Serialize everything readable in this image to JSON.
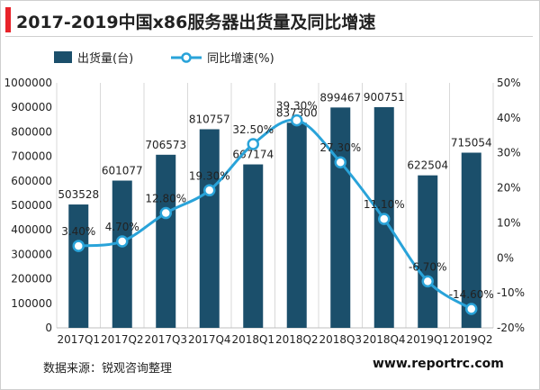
{
  "header": {
    "title": "2017-2019中国x86服务器出货量及同比增速"
  },
  "colors": {
    "bar": "#1b4f6b",
    "line": "#29a3d9",
    "accent": "#e8232a"
  },
  "footer": {
    "source": "数据来源：锐观咨询整理",
    "site": "www.reportrc.com"
  },
  "chart_data": {
    "type": "bar",
    "categories": [
      "2017Q1",
      "2017Q2",
      "2017Q3",
      "2017Q4",
      "2018Q1",
      "2018Q2",
      "2018Q3",
      "2018Q4",
      "2019Q1",
      "2019Q2"
    ],
    "series": [
      {
        "name": "出货量(台)",
        "type": "bar",
        "axis": "left",
        "values": [
          503528,
          601077,
          706573,
          810757,
          667174,
          837300,
          899467,
          900751,
          622504,
          715054
        ],
        "labels": [
          "503528",
          "601077",
          "706573",
          "810757",
          "667174",
          "837300",
          "899467",
          "900751",
          "622504",
          "715054"
        ]
      },
      {
        "name": "同比增速(%)",
        "type": "line",
        "axis": "right",
        "values": [
          3.4,
          4.7,
          12.8,
          19.3,
          32.5,
          39.3,
          27.3,
          11.1,
          -6.7,
          -14.6
        ],
        "labels": [
          "3.40%",
          "4.70%",
          "12.80%",
          "19.30%",
          "32.50%",
          "39.30%",
          "27.30%",
          "11.10%",
          "-6.70%",
          "-14.60%"
        ]
      }
    ],
    "y_left": {
      "min": 0,
      "max": 1000000,
      "step": 100000,
      "ticks": [
        "0",
        "100000",
        "200000",
        "300000",
        "400000",
        "500000",
        "600000",
        "700000",
        "800000",
        "900000",
        "1000000"
      ]
    },
    "y_right": {
      "min": -20,
      "max": 50,
      "step": 10,
      "ticks": [
        "-20%",
        "-10%",
        "0%",
        "10%",
        "20%",
        "30%",
        "40%",
        "50%"
      ]
    },
    "grid": "vertical",
    "legend": "top-left"
  }
}
